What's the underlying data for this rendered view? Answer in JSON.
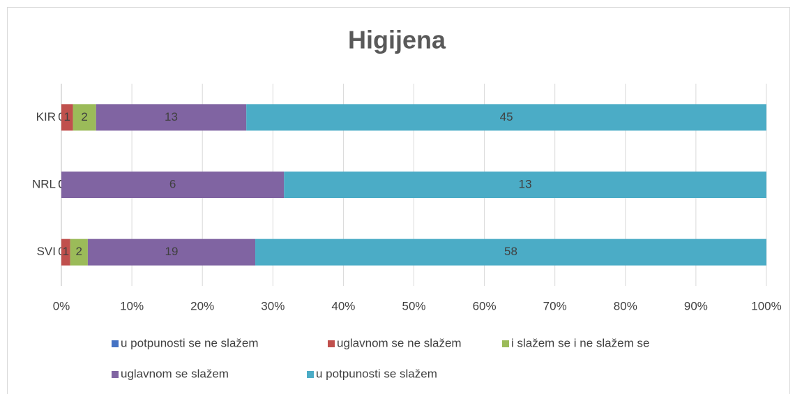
{
  "chart_data": {
    "type": "bar",
    "orientation": "horizontal",
    "stacked": "percent",
    "title": "Higijena",
    "categories": [
      "KIR",
      "NRL",
      "SVI"
    ],
    "series": [
      {
        "name": "u potpunosti se ne slažem",
        "color": "#4472c4",
        "values": [
          0,
          0,
          0
        ]
      },
      {
        "name": "uglavnom se ne slažem",
        "color": "#c0504d",
        "values": [
          1,
          0,
          1
        ]
      },
      {
        "name": "i slažem se i ne slažem se",
        "color": "#9bbb59",
        "values": [
          2,
          0,
          2
        ]
      },
      {
        "name": "uglavnom se slažem",
        "color": "#8064a2",
        "values": [
          13,
          6,
          19
        ]
      },
      {
        "name": "u potpunosti se slažem",
        "color": "#4bacc6",
        "values": [
          45,
          13,
          58
        ]
      }
    ],
    "xlim": [
      0,
      100
    ],
    "xticks": [
      {
        "value": 0,
        "label": "0%"
      },
      {
        "value": 10,
        "label": "10%"
      },
      {
        "value": 20,
        "label": "20%"
      },
      {
        "value": 30,
        "label": "30%"
      },
      {
        "value": 40,
        "label": "40%"
      },
      {
        "value": 50,
        "label": "50%"
      },
      {
        "value": 60,
        "label": "60%"
      },
      {
        "value": 70,
        "label": "70%"
      },
      {
        "value": 80,
        "label": "80%"
      },
      {
        "value": 90,
        "label": "90%"
      },
      {
        "value": 100,
        "label": "100%"
      }
    ],
    "grid": true,
    "legend": "bottom"
  }
}
